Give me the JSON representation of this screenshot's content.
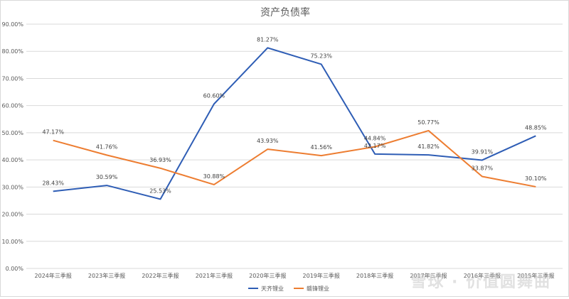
{
  "chart_data": {
    "type": "line",
    "title": "资产负债率",
    "categories": [
      "2024年三季报",
      "2023年三季报",
      "2022年三季报",
      "2021年三季报",
      "2020年三季报",
      "2019年三季报",
      "2018年三季报",
      "2017年三季报",
      "2016年三季报",
      "2015年三季报"
    ],
    "series": [
      {
        "name": "天齐锂业",
        "color": "#2e5db5",
        "values": [
          28.43,
          30.59,
          25.53,
          60.6,
          81.27,
          75.23,
          42.17,
          41.82,
          39.91,
          48.85
        ],
        "labels": [
          "28.43%",
          "30.59%",
          "25.53%",
          "60.60%",
          "81.27%",
          "75.23%",
          "42.17%",
          "41.82%",
          "39.91%",
          "48.85%"
        ]
      },
      {
        "name": "赣锋锂业",
        "color": "#ed7d31",
        "values": [
          47.17,
          41.76,
          36.93,
          30.88,
          43.93,
          41.56,
          44.84,
          50.77,
          33.87,
          30.1
        ],
        "labels": [
          "47.17%",
          "41.76%",
          "36.93%",
          "30.88%",
          "43.93%",
          "41.56%",
          "44.84%",
          "50.77%",
          "33.87%",
          "30.10%"
        ]
      }
    ],
    "ylim": [
      0,
      90
    ],
    "ytick_labels": [
      "0.00%",
      "10.00%",
      "20.00%",
      "30.00%",
      "40.00%",
      "50.00%",
      "60.00%",
      "70.00%",
      "80.00%",
      "90.00%"
    ],
    "grid": true,
    "legend_position": "bottom",
    "gridline_color": "#d9d9d9",
    "axis_text_color": "#595959"
  },
  "watermark": "雪球 · 价值圆舞曲"
}
